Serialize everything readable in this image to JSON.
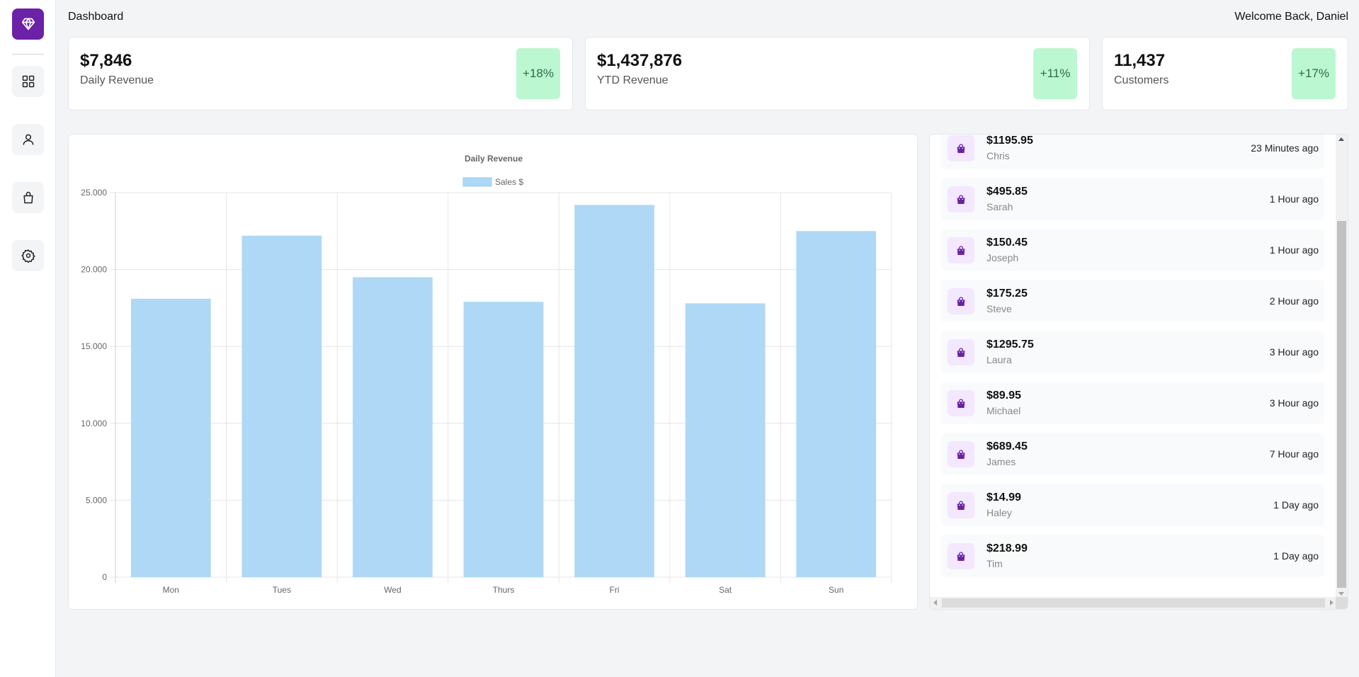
{
  "header": {
    "title": "Dashboard",
    "welcome": "Welcome Back, Daniel"
  },
  "sidebar": {
    "logo_icon": "diamond-icon",
    "accent_color": "#6b21a8",
    "items": [
      {
        "icon": "dashboard-grid-icon"
      },
      {
        "icon": "user-icon"
      },
      {
        "icon": "shopping-bag-icon"
      },
      {
        "icon": "gear-icon"
      }
    ]
  },
  "stats": [
    {
      "value": "$7,846",
      "label": "Daily Revenue",
      "change": "+18%"
    },
    {
      "value": "$1,437,876",
      "label": "YTD Revenue",
      "change": "+11%"
    },
    {
      "value": "11,437",
      "label": "Customers",
      "change": "+17%"
    }
  ],
  "chart_data": {
    "type": "bar",
    "title": "Daily Revenue",
    "categories": [
      "Mon",
      "Tues",
      "Wed",
      "Thurs",
      "Fri",
      "Sat",
      "Sun"
    ],
    "series": [
      {
        "name": "Sales $",
        "values": [
          18100,
          22200,
          19500,
          17900,
          24200,
          17800,
          22500
        ],
        "color": "#aed8f5"
      }
    ],
    "yticks": [
      "0",
      "5.000",
      "10.000",
      "15.000",
      "20.000",
      "25.000"
    ],
    "ylim": [
      0,
      25000
    ],
    "grid": true,
    "legend": "top"
  },
  "orders": [
    {
      "amount": "$1195.95",
      "name": "Chris",
      "time": "23 Minutes ago"
    },
    {
      "amount": "$495.85",
      "name": "Sarah",
      "time": "1 Hour ago"
    },
    {
      "amount": "$150.45",
      "name": "Joseph",
      "time": "1 Hour ago"
    },
    {
      "amount": "$175.25",
      "name": "Steve",
      "time": "2 Hour ago"
    },
    {
      "amount": "$1295.75",
      "name": "Laura",
      "time": "3 Hour ago"
    },
    {
      "amount": "$89.95",
      "name": "Michael",
      "time": "3 Hour ago"
    },
    {
      "amount": "$689.45",
      "name": "James",
      "time": "7 Hour ago"
    },
    {
      "amount": "$14.99",
      "name": "Haley",
      "time": "1 Day ago"
    },
    {
      "amount": "$218.99",
      "name": "Tim",
      "time": "1 Day ago"
    }
  ],
  "colors": {
    "pill_bg": "#bbf7d0",
    "pill_text": "#2f6b43",
    "bag_bg": "#f3e8ff",
    "bag_icon": "#6b21a8"
  }
}
